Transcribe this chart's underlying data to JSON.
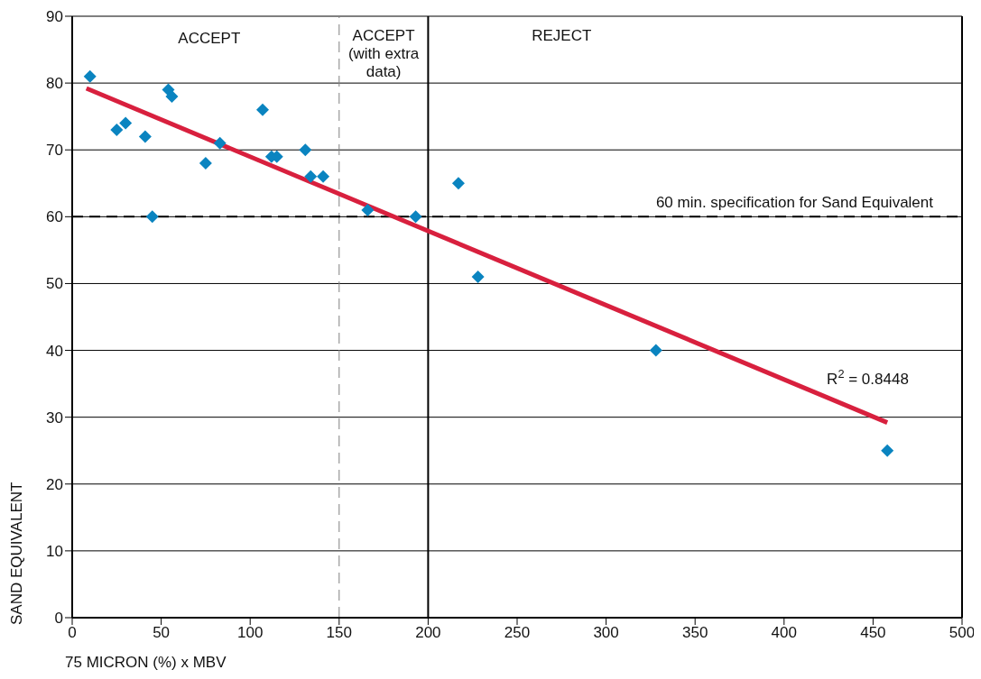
{
  "chart_data": {
    "type": "scatter",
    "xlabel": "75 MICRON (%) x MBV",
    "ylabel": "SAND EQUIVALENT",
    "xlim": [
      0,
      500
    ],
    "xticks": [
      0,
      50,
      100,
      150,
      200,
      250,
      300,
      350,
      400,
      450,
      500
    ],
    "ylim": [
      0,
      90
    ],
    "yticks": [
      0,
      10,
      20,
      30,
      40,
      50,
      60,
      70,
      80,
      90
    ],
    "grid": "y",
    "marker": "diamond",
    "series": [
      {
        "color": "#0a84c0",
        "x": [
          10,
          25,
          30,
          41,
          45,
          54,
          56,
          75,
          83,
          107,
          112,
          115,
          131,
          134,
          141,
          166,
          193,
          217,
          228,
          328,
          458
        ],
        "values": [
          81,
          73,
          74,
          72,
          60,
          79,
          78,
          68,
          71,
          76,
          69,
          69,
          70,
          66,
          66,
          61,
          60,
          65,
          51,
          40,
          25
        ]
      },
      {
        "type": "line",
        "color": "#d8203e",
        "x": [
          8,
          458
        ],
        "values": [
          79.2,
          29.2
        ],
        "marker": "none",
        "line_style": "solid"
      }
    ],
    "ref_lines": [
      {
        "axis": "x",
        "value": 150,
        "color": "#808080",
        "line_style": "dashed"
      },
      {
        "axis": "x",
        "value": 200,
        "color": "#000000",
        "line_style": "solid"
      },
      {
        "axis": "y",
        "value": 60,
        "color": "#000000",
        "line_style": "dashed",
        "label": "60 min. specification for Sand Equivalent"
      }
    ],
    "annotations": [
      "ACCEPT",
      "ACCEPT\n(with extra\ndata)",
      "REJECT",
      "R$^{2}$ = 0.8448"
    ]
  }
}
